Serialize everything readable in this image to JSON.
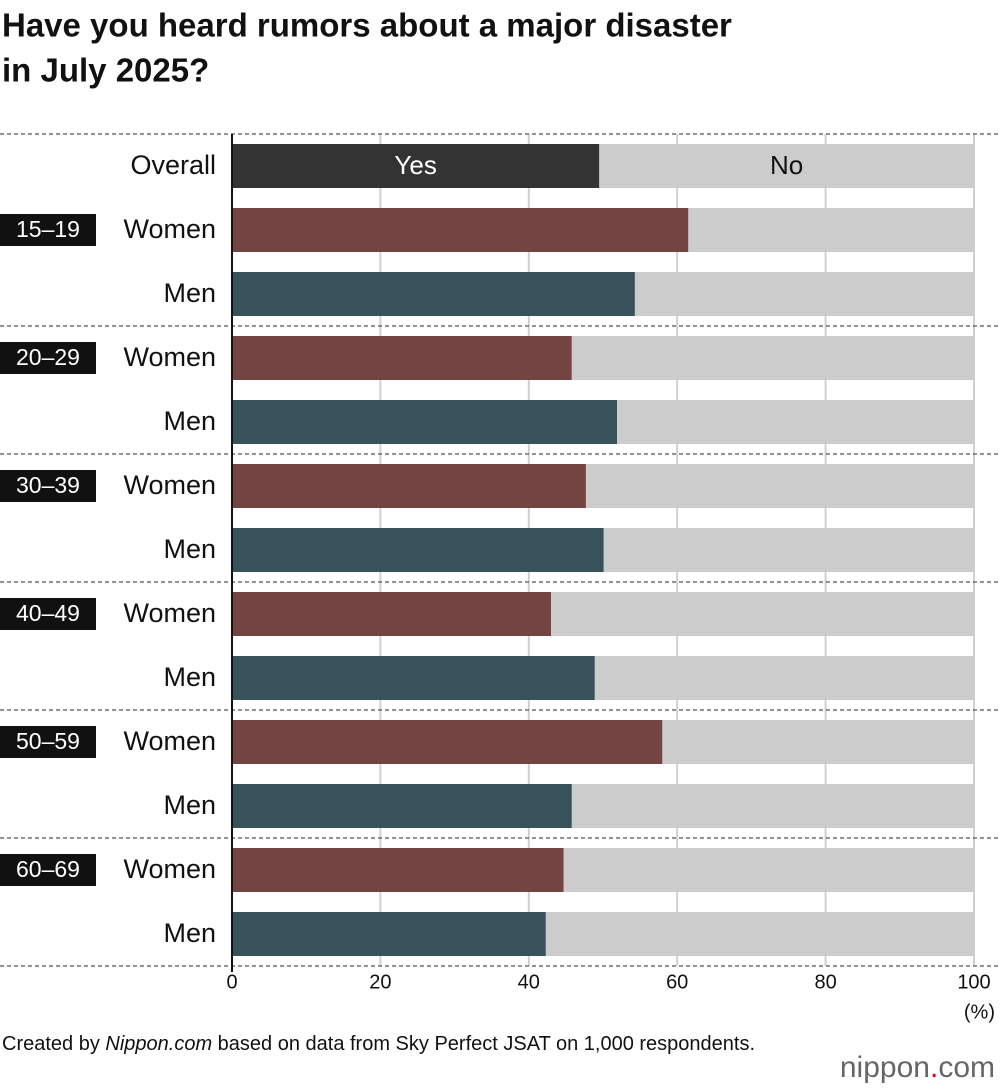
{
  "chart_data": {
    "type": "stacked-bar-horizontal",
    "title": [
      "Have you heard rumors about a major disaster",
      "in July 2025?"
    ],
    "categories": [
      "Overall",
      "Women",
      "Men",
      "Women",
      "Men",
      "Women",
      "Men",
      "Women",
      "Men",
      "Women",
      "Men",
      "Women",
      "Men"
    ],
    "groups": [
      null,
      "15–19",
      null,
      "20–29",
      null,
      "30–39",
      null,
      "40–49",
      null,
      "50–59",
      null,
      "60–69",
      null
    ],
    "series": [
      {
        "name": "Yes",
        "colors": [
          "#333333",
          "#744443",
          "#37525a",
          "#744443",
          "#37525a",
          "#744443",
          "#37525a",
          "#744443",
          "#37525a",
          "#744443",
          "#37525a",
          "#744443",
          "#37525a"
        ],
        "values": [
          49.5,
          61.5,
          54.3,
          45.8,
          51.9,
          47.7,
          50.1,
          43.0,
          48.9,
          58.0,
          45.8,
          44.7,
          42.3
        ]
      },
      {
        "name": "No",
        "color": "#cccccc",
        "values": [
          50.5,
          38.5,
          45.7,
          54.2,
          48.1,
          52.3,
          49.9,
          57.0,
          51.1,
          42.0,
          54.2,
          55.3,
          57.7
        ]
      }
    ],
    "xlim": [
      0,
      100
    ],
    "xticks": [
      0,
      20,
      40,
      60,
      80,
      100
    ],
    "xlabel": "(%)",
    "grid": true,
    "source": [
      "Created by ",
      "Nippon.com",
      " based on data from Sky Perfect JSAT on 1,000 respondents."
    ],
    "logo": [
      "nippon",
      ".",
      "com"
    ]
  }
}
